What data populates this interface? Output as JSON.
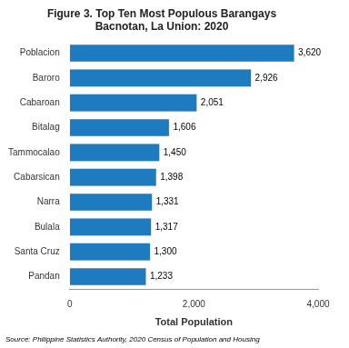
{
  "chart_data": {
    "type": "bar",
    "orientation": "horizontal",
    "title": "Figure 3. Top Ten Most Populous Barangays\nBacnotan, La Union: 2020",
    "categories": [
      "Pandan",
      "Santa Cruz",
      "Bulala",
      "Narra",
      "Cabarsican",
      "Tammocalao",
      "Bitalag",
      "Cabaroan",
      "Baroro",
      "Poblacion"
    ],
    "values": [
      1233,
      1300,
      1317,
      1331,
      1398,
      1450,
      1606,
      2051,
      2926,
      3620
    ],
    "value_labels": [
      "1,233",
      "1,300",
      "1,317",
      "1,331",
      "1,398",
      "1,450",
      "1,606",
      "2,051",
      "2,926",
      "3,620"
    ],
    "data_labels": true,
    "color": "#1F7BC0",
    "xlabel": "Total Population",
    "xlim": [
      0,
      4000
    ],
    "xticks": [
      0,
      {
        "value": 2000,
        "label": "2,000"
      },
      {
        "value": 4000,
        "label": "4,000"
      }
    ],
    "grid": false,
    "annotation": "Source: Philippine Statistics Authority, 2020 Census of Population and Housing"
  }
}
